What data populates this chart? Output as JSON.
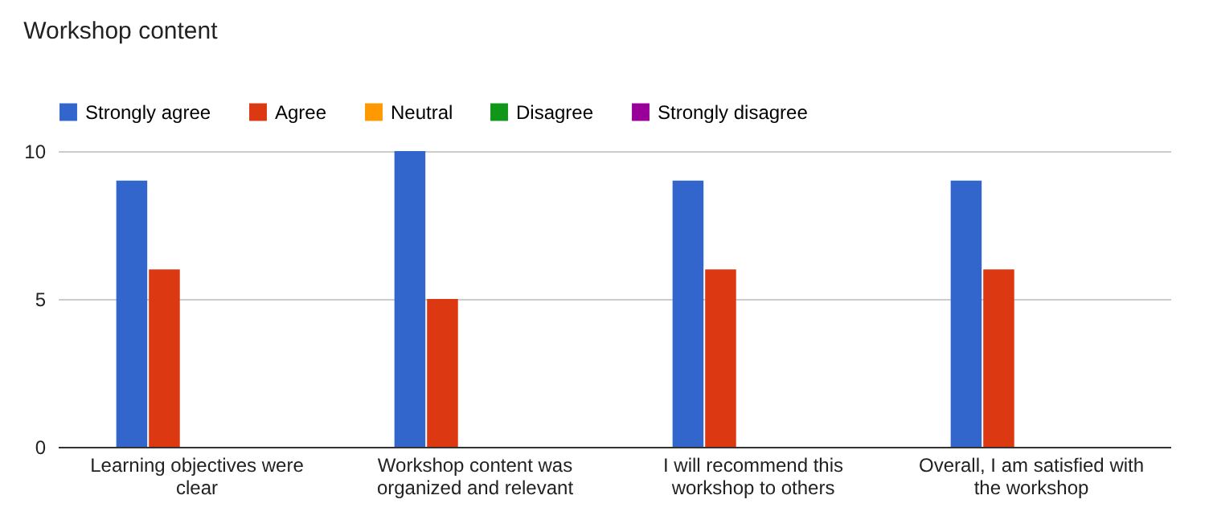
{
  "chart_data": {
    "type": "bar",
    "title": "Workshop content",
    "categories": [
      "Learning objectives were clear",
      "Workshop content was organized and relevant",
      "I will recommend this workshop to others",
      "Overall, I am satisfied with the workshop"
    ],
    "series": [
      {
        "name": "Strongly agree",
        "color": "#3366cc",
        "values": [
          9,
          10,
          9,
          9
        ]
      },
      {
        "name": "Agree",
        "color": "#dc3912",
        "values": [
          6,
          5,
          6,
          6
        ]
      },
      {
        "name": "Neutral",
        "color": "#ff9900",
        "values": [
          0,
          0,
          0,
          0
        ]
      },
      {
        "name": "Disagree",
        "color": "#109618",
        "values": [
          0,
          0,
          0,
          0
        ]
      },
      {
        "name": "Strongly disagree",
        "color": "#990099",
        "values": [
          0,
          0,
          0,
          0
        ]
      }
    ],
    "ylim": [
      0,
      10
    ],
    "yticks": [
      0,
      5,
      10
    ],
    "grid": "y",
    "legend": "top left"
  }
}
